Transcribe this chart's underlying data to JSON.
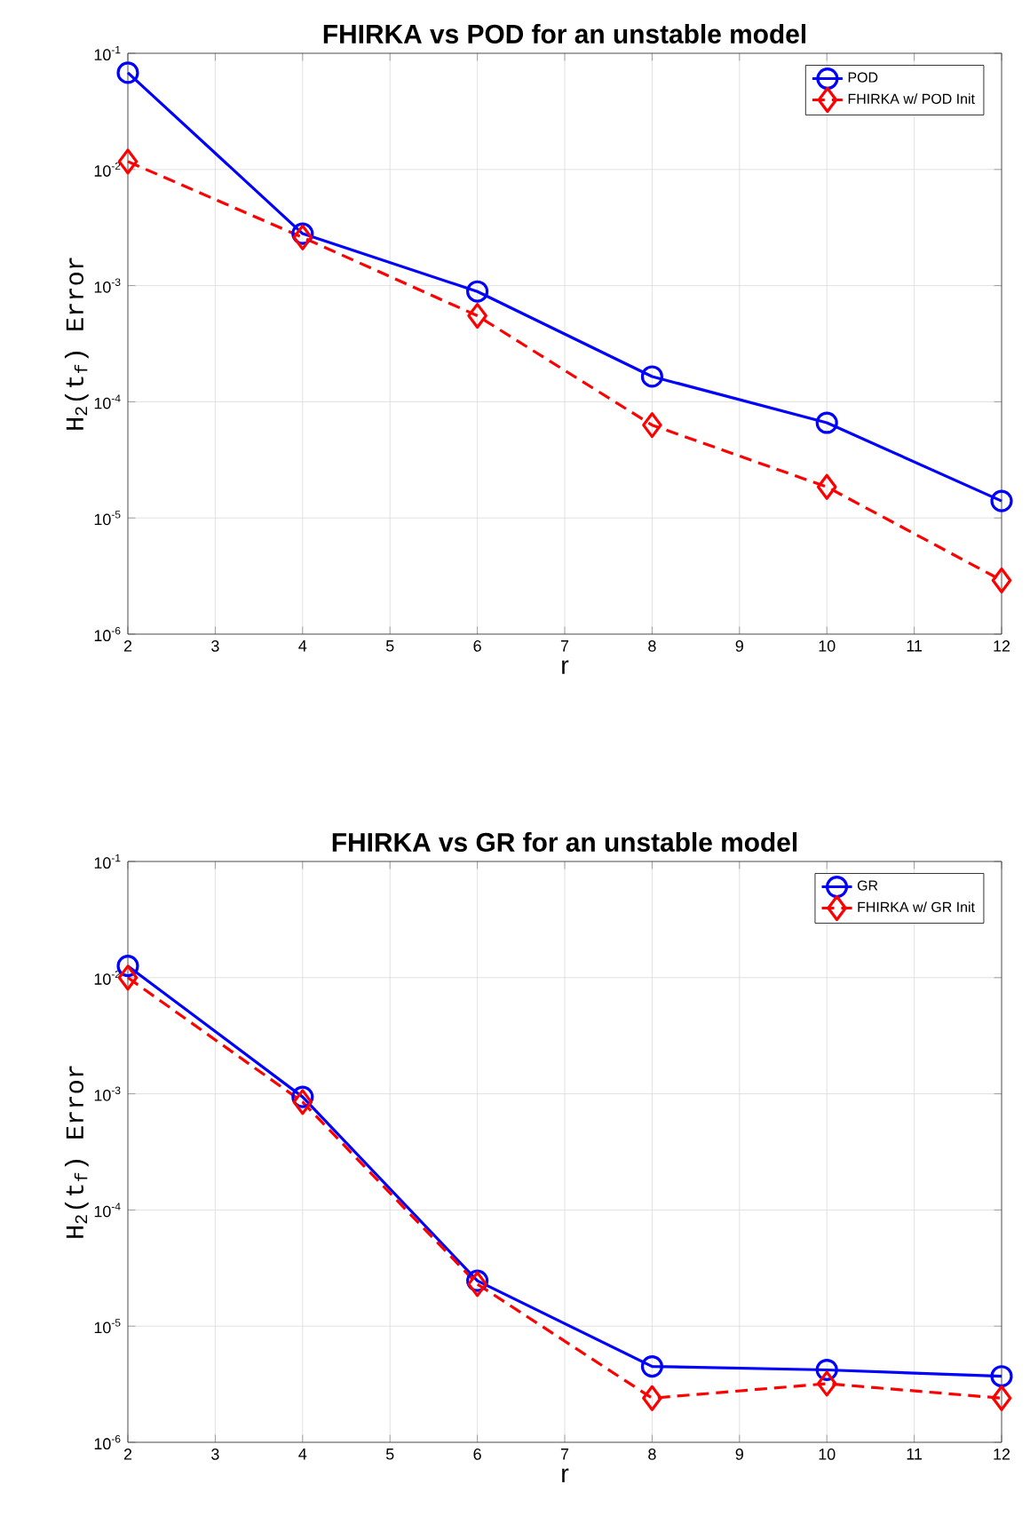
{
  "chart_data": [
    {
      "type": "line",
      "title": "FHIRKA vs POD for an unstable model",
      "xlabel": "r",
      "ylabel": "H$_{2}$(t$_{f}$) Error",
      "x": [
        2,
        4,
        6,
        8,
        10,
        12
      ],
      "series": [
        {
          "name": "POD",
          "color": "#0000ff",
          "marker": "circle",
          "line_style": "solid",
          "values": [
            0.068,
            0.0028,
            0.00089,
            0.000165,
            6.6e-05,
            1.4e-05
          ]
        },
        {
          "name": "FHIRKA w/ POD Init",
          "color": "#ff0000",
          "marker": "diamond",
          "line_style": "dashed",
          "values": [
            0.0117,
            0.0026,
            0.00055,
            6.3e-05,
            1.85e-05,
            2.9e-06
          ]
        }
      ],
      "log": "y",
      "xlim": [
        2,
        12
      ],
      "ylim": [
        1e-06,
        0.1
      ],
      "xticks": [
        2,
        3,
        4,
        5,
        6,
        7,
        8,
        9,
        10,
        11,
        12
      ],
      "yticks": [
        {
          "value": 1e-06,
          "label": "10$^{-6}$"
        },
        {
          "value": 1e-05,
          "label": "10$^{-5}$"
        },
        {
          "value": 0.0001,
          "label": "10$^{-4}$"
        },
        {
          "value": 0.001,
          "label": "10$^{-3}$"
        },
        {
          "value": 0.01,
          "label": "10$^{-2}$"
        },
        {
          "value": 0.1,
          "label": "10$^{-1}$"
        }
      ],
      "grid": true,
      "legend": "top right"
    },
    {
      "type": "line",
      "title": "FHIRKA vs GR for an unstable model",
      "xlabel": "r",
      "ylabel": "H$_{2}$(t$_{f}$) Error",
      "x": [
        2,
        4,
        6,
        8,
        10,
        12
      ],
      "series": [
        {
          "name": "GR",
          "color": "#0000ff",
          "marker": "circle",
          "line_style": "solid",
          "values": [
            0.0126,
            0.00094,
            2.46e-05,
            4.5e-06,
            4.2e-06,
            3.7e-06
          ]
        },
        {
          "name": "FHIRKA w/ GR Init",
          "color": "#ff0000",
          "marker": "diamond",
          "line_style": "dashed",
          "values": [
            0.01,
            0.00085,
            2.3e-05,
            2.4e-06,
            3.2e-06,
            2.4e-06
          ]
        }
      ],
      "log": "y",
      "xlim": [
        2,
        12
      ],
      "ylim": [
        1e-06,
        0.1
      ],
      "xticks": [
        2,
        3,
        4,
        5,
        6,
        7,
        8,
        9,
        10,
        11,
        12
      ],
      "yticks": [
        {
          "value": 1e-06,
          "label": "10$^{-6}$"
        },
        {
          "value": 1e-05,
          "label": "10$^{-5}$"
        },
        {
          "value": 0.0001,
          "label": "10$^{-4}$"
        },
        {
          "value": 0.001,
          "label": "10$^{-3}$"
        },
        {
          "value": 0.01,
          "label": "10$^{-2}$"
        },
        {
          "value": 0.1,
          "label": "10$^{-1}$"
        }
      ],
      "grid": true,
      "legend": "top right"
    }
  ]
}
